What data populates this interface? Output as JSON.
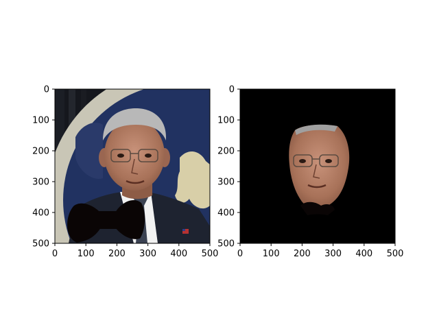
{
  "chart_data": [
    {
      "type": "image",
      "image_content": "man in suit and tie with dark bow-tie shape overlaid at chest, curved emblem backdrop behind",
      "x_ticks": [
        "0",
        "100",
        "200",
        "300",
        "400",
        "500"
      ],
      "y_ticks": [
        "0",
        "100",
        "200",
        "300",
        "400",
        "500"
      ],
      "xlim": [
        0,
        500
      ],
      "ylim": [
        500,
        0
      ],
      "grid": false
    },
    {
      "type": "image",
      "image_content": "segmented face on black background with dark bow-tie shape below chin",
      "x_ticks": [
        "0",
        "100",
        "200",
        "300",
        "400",
        "500"
      ],
      "y_ticks": [
        "0",
        "100",
        "200",
        "300",
        "400",
        "500"
      ],
      "xlim": [
        0,
        500
      ],
      "ylim": [
        500,
        0
      ],
      "grid": false
    }
  ],
  "colors": {
    "frame": "#000000",
    "background": "#ffffff",
    "mask": "#000000",
    "bowtie": "#0a0505",
    "skin": "#b48268",
    "hair": "#b8b8b8",
    "suit": "#1e2330",
    "shirt": "#f2f2f2",
    "tie": "#3b4252",
    "backdrop_navy": "#213261",
    "backdrop_rim": "#c9c6b6",
    "studio_dark": "#15171d"
  }
}
